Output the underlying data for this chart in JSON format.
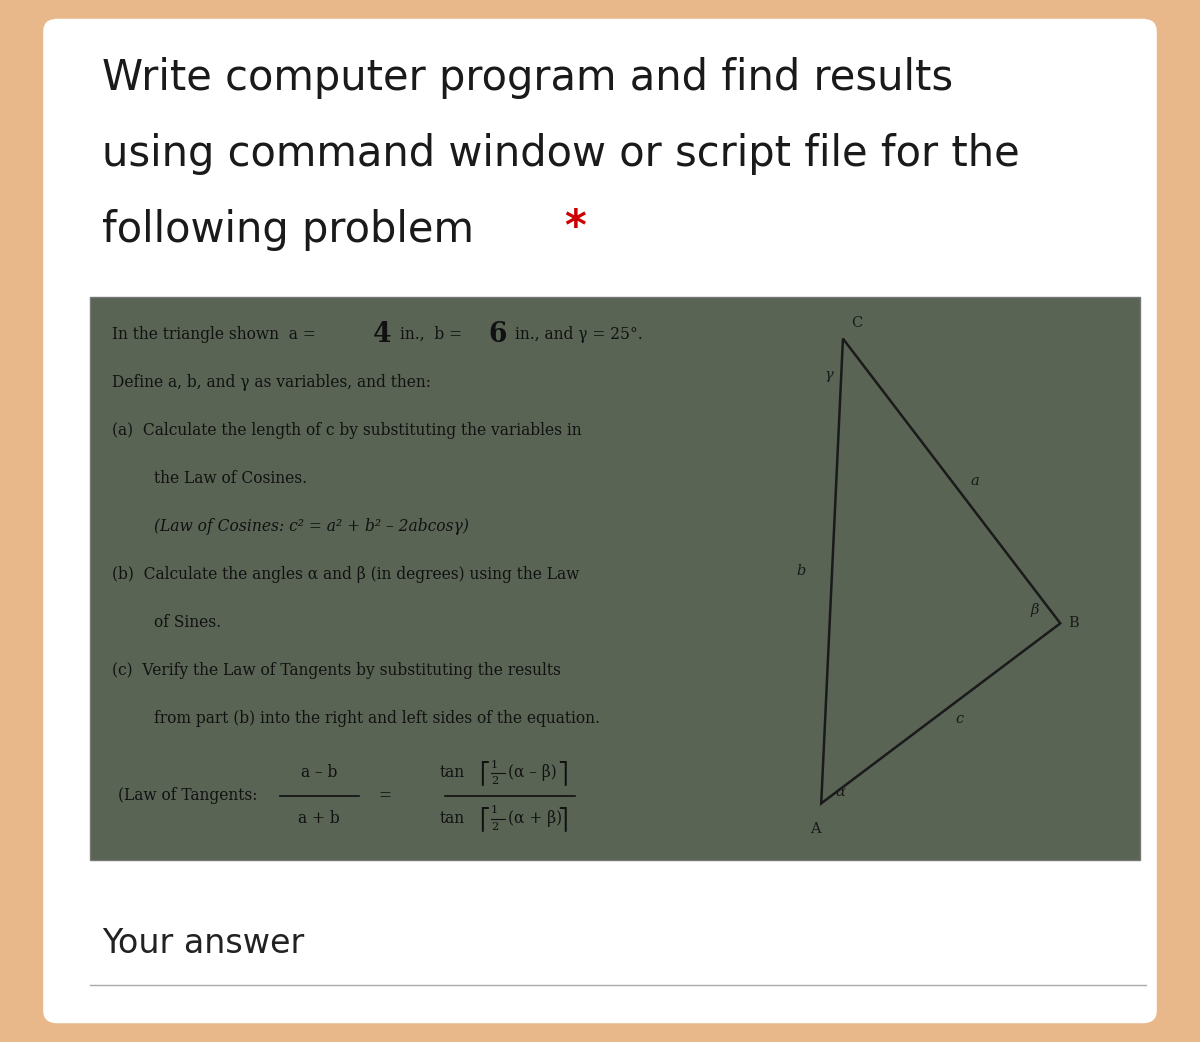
{
  "background_color": "#e8b88a",
  "card_color": "#ffffff",
  "title_lines": [
    "Write computer program and find results",
    "using command window or script file for the",
    "following problem"
  ],
  "title_star": "*",
  "title_fontsize": 30,
  "title_color": "#1a1a1a",
  "star_color": "#cc0000",
  "your_answer_text": "Your answer",
  "your_answer_fontsize": 24,
  "your_answer_color": "#222222",
  "inner_box_bg": "#5a6455",
  "inner_text_color": "#1a1a1a",
  "inner_text_color_light": "#e8e8e0",
  "fig_width": 12.0,
  "fig_height": 10.42
}
